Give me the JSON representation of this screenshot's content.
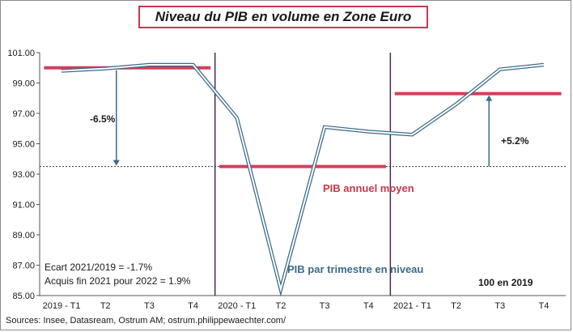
{
  "title": "Niveau du PIB  en volume en Zone Euro",
  "source": "Sources: Insee,  Datasream, Ostrum AM; ostrum.philippewaechter.com/",
  "annotations": {
    "drop_pct": "-6.5%",
    "rise_pct": "+5.2%",
    "annual_label": "PIB annuel moyen",
    "quarterly_label": "PIB par trimestre en niveau",
    "base_note": "100  en 2019",
    "ecart": "Ecart 2021/2019 = -1.7%",
    "acquis": "Acquis fin 2021 pour 2022 = 1.9%"
  },
  "colors": {
    "series_line": "#3a6b8a",
    "annual_bar": "#d0405a",
    "divider": "#4a2a4a",
    "title_border": "#c8384c"
  },
  "chart_data": {
    "type": "line",
    "title": "Niveau du PIB  en volume en Zone Euro",
    "ylim": [
      85,
      101
    ],
    "yticks": [
      "85.00",
      "87.00",
      "89.00",
      "91.00",
      "93.00",
      "95.00",
      "97.00",
      "99.00",
      "101.00"
    ],
    "ytick_values": [
      85,
      87,
      89,
      91,
      93,
      95,
      97,
      99,
      101
    ],
    "categories": [
      "2019 - T1",
      "T2",
      "T3",
      "T4",
      "2020 - T1",
      "T2",
      "T3",
      "T4",
      "2021 - T1",
      "T2",
      "T3",
      "T4"
    ],
    "series": [
      {
        "name": "PIB par trimestre en niveau",
        "values": [
          99.8,
          99.95,
          100.2,
          100.2,
          96.7,
          85.4,
          96.1,
          95.8,
          95.6,
          97.6,
          99.9,
          100.2
        ]
      }
    ],
    "annual_averages": [
      {
        "year": "2019",
        "value": 100.0
      },
      {
        "year": "2020",
        "value": 93.5
      },
      {
        "year": "2021",
        "value": 98.3
      }
    ],
    "reference_line": 93.5,
    "grid": false
  }
}
